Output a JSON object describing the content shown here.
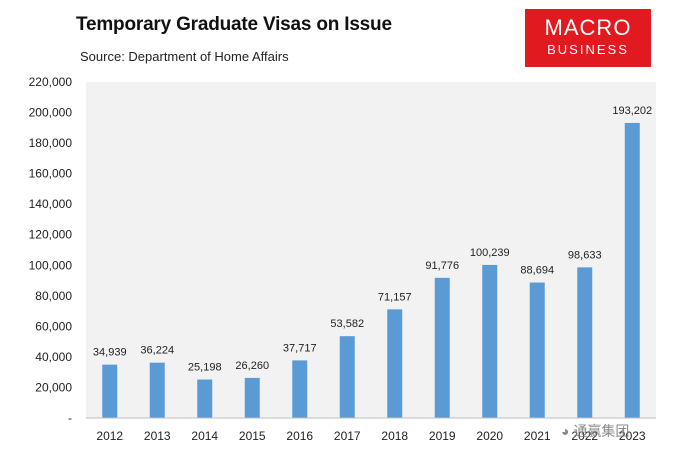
{
  "header": {
    "title": "Temporary Graduate Visas on Issue",
    "subtitle": "Source: Department of Home Affairs"
  },
  "logo": {
    "line1": "MACRO",
    "line2": "BUSINESS",
    "color": "#e01a1f"
  },
  "watermark": {
    "text": "通赢集团"
  },
  "chart_data": {
    "type": "bar",
    "categories": [
      "2012",
      "2013",
      "2014",
      "2015",
      "2016",
      "2017",
      "2018",
      "2019",
      "2020",
      "2021",
      "2022",
      "2023"
    ],
    "values": [
      34939,
      36224,
      25198,
      26260,
      37717,
      53582,
      71157,
      91776,
      100239,
      88694,
      98633,
      193202
    ],
    "data_labels": [
      "34,939",
      "36,224",
      "25,198",
      "26,260",
      "37,717",
      "53,582",
      "71,157",
      "91,776",
      "100,239",
      "88,694",
      "98,633",
      "193,202"
    ],
    "ylim": [
      0,
      220000
    ],
    "yticks": [
      0,
      20000,
      40000,
      60000,
      80000,
      100000,
      120000,
      140000,
      160000,
      180000,
      200000,
      220000
    ],
    "ytick_labels": [
      "-",
      "20,000",
      "40,000",
      "60,000",
      "80,000",
      "100,000",
      "120,000",
      "140,000",
      "160,000",
      "180,000",
      "200,000",
      "220,000"
    ],
    "xlabel": "",
    "ylabel": "",
    "grid": false,
    "legend": "none",
    "bar_color": "#5b9bd5",
    "plot_background": "#f2f2f2"
  }
}
